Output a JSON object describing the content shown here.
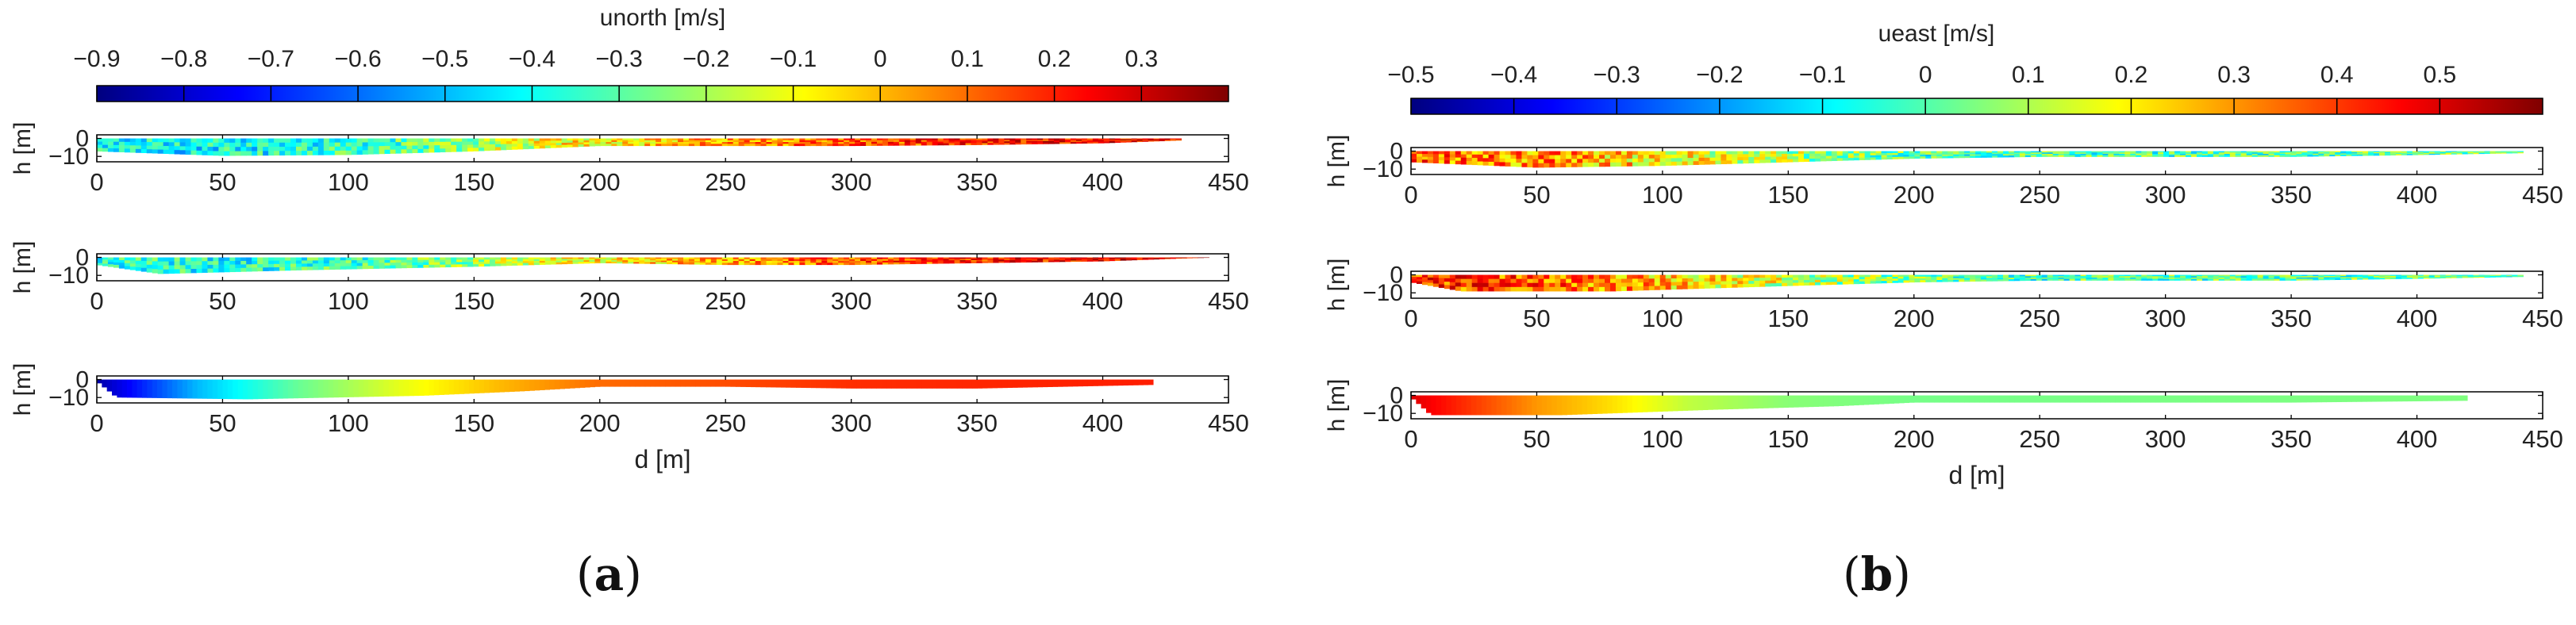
{
  "colors": {
    "jet": [
      "#00007f",
      "#0000ff",
      "#007fff",
      "#00ffff",
      "#7fff7f",
      "#ffff00",
      "#ff7f00",
      "#ff0000",
      "#7f0000"
    ],
    "axis": "#000000",
    "text": "#222222"
  },
  "panels": [
    {
      "id": "a",
      "caption": "a",
      "colorbar": {
        "label": "unorth [m/s]",
        "min": -0.9,
        "max": 0.4,
        "ticks": [
          -0.9,
          -0.8,
          -0.7,
          -0.6,
          -0.5,
          -0.4,
          -0.3,
          -0.2,
          -0.1,
          0,
          0.1,
          0.2,
          0.3
        ],
        "tick_labels": [
          "−0.9",
          "−0.8",
          "−0.7",
          "−0.6",
          "−0.5",
          "−0.4",
          "−0.3",
          "−0.2",
          "−0.1",
          "0",
          "0.1",
          "0.2",
          "0.3"
        ]
      },
      "chart_data": [
        {
          "type": "heatmap",
          "variant": "noisy",
          "xlim": [
            0,
            450
          ],
          "ylim": [
            -13,
            2
          ],
          "xticks": [
            0,
            50,
            100,
            150,
            200,
            250,
            300,
            350,
            400,
            450
          ],
          "yticks": [
            0,
            -10
          ],
          "ytick_labels": [
            "0",
            "−10"
          ],
          "xlabel": "",
          "ylabel": "h [m]",
          "end_x": 430,
          "bed": [
            [
              0,
              -7
            ],
            [
              50,
              -9.5
            ],
            [
              100,
              -9
            ],
            [
              150,
              -7
            ],
            [
              200,
              -4
            ],
            [
              250,
              -4
            ],
            [
              300,
              -4
            ],
            [
              350,
              -3.5
            ],
            [
              400,
              -2.5
            ],
            [
              430,
              -1
            ]
          ],
          "field": [
            [
              0,
              -0.42
            ],
            [
              60,
              -0.4
            ],
            [
              120,
              -0.32
            ],
            [
              180,
              -0.1
            ],
            [
              230,
              0.0
            ],
            [
              280,
              0.1
            ],
            [
              340,
              0.18
            ],
            [
              400,
              0.25
            ],
            [
              430,
              0.25
            ]
          ]
        },
        {
          "type": "heatmap",
          "variant": "noisy",
          "xlim": [
            0,
            450
          ],
          "ylim": [
            -13,
            2
          ],
          "xticks": [
            0,
            50,
            100,
            150,
            200,
            250,
            300,
            350,
            400,
            450
          ],
          "yticks": [
            0,
            -10
          ],
          "ytick_labels": [
            "0",
            "−10"
          ],
          "xlabel": "",
          "ylabel": "h [m]",
          "end_x": 440,
          "bed": [
            [
              0,
              -4
            ],
            [
              25,
              -9
            ],
            [
              80,
              -7
            ],
            [
              150,
              -5
            ],
            [
              200,
              -3
            ],
            [
              250,
              -4
            ],
            [
              300,
              -4
            ],
            [
              350,
              -3
            ],
            [
              400,
              -2
            ],
            [
              440,
              0
            ]
          ],
          "field": [
            [
              0,
              -0.35
            ],
            [
              60,
              -0.38
            ],
            [
              120,
              -0.3
            ],
            [
              180,
              -0.12
            ],
            [
              230,
              0.0
            ],
            [
              280,
              0.08
            ],
            [
              340,
              0.18
            ],
            [
              400,
              0.26
            ],
            [
              440,
              0.28
            ]
          ]
        },
        {
          "type": "heatmap",
          "variant": "smooth",
          "xlim": [
            0,
            450
          ],
          "ylim": [
            -13,
            2
          ],
          "xticks": [
            0,
            50,
            100,
            150,
            200,
            250,
            300,
            350,
            400,
            450
          ],
          "yticks": [
            0,
            -10
          ],
          "ytick_labels": [
            "0",
            "−10"
          ],
          "xlabel": "d [m]",
          "ylabel": "h [m]",
          "end_x": 420,
          "bed": [
            [
              0,
              -1
            ],
            [
              8,
              -10
            ],
            [
              60,
              -11
            ],
            [
              130,
              -9
            ],
            [
              170,
              -6.5
            ],
            [
              200,
              -4
            ],
            [
              250,
              -4
            ],
            [
              300,
              -5
            ],
            [
              350,
              -5
            ],
            [
              420,
              -3
            ]
          ],
          "field": [
            [
              0,
              -0.85
            ],
            [
              15,
              -0.72
            ],
            [
              40,
              -0.5
            ],
            [
              80,
              -0.28
            ],
            [
              120,
              -0.12
            ],
            [
              160,
              0.0
            ],
            [
              200,
              0.1
            ],
            [
              300,
              0.18
            ],
            [
              420,
              0.2
            ]
          ]
        }
      ]
    },
    {
      "id": "b",
      "caption": "b",
      "colorbar": {
        "label": "ueast [m/s]",
        "min": -0.5,
        "max": 0.6,
        "ticks": [
          -0.5,
          -0.4,
          -0.3,
          -0.2,
          -0.1,
          0,
          0.1,
          0.2,
          0.3,
          0.4,
          0.5
        ],
        "tick_labels": [
          "−0.5",
          "−0.4",
          "−0.3",
          "−0.2",
          "−0.1",
          "0",
          "0.1",
          "0.2",
          "0.3",
          "0.4",
          "0.5"
        ]
      },
      "chart_data": [
        {
          "type": "heatmap",
          "variant": "noisy",
          "xlim": [
            0,
            450
          ],
          "ylim": [
            -13,
            2
          ],
          "xticks": [
            0,
            50,
            100,
            150,
            200,
            250,
            300,
            350,
            400,
            450
          ],
          "yticks": [
            0,
            -10
          ],
          "ytick_labels": [
            "0",
            "−10"
          ],
          "xlabel": "",
          "ylabel": "h [m]",
          "end_x": 440,
          "bed": [
            [
              0,
              -6
            ],
            [
              50,
              -9
            ],
            [
              100,
              -8
            ],
            [
              150,
              -6
            ],
            [
              200,
              -4
            ],
            [
              250,
              -3
            ],
            [
              300,
              -3
            ],
            [
              350,
              -3
            ],
            [
              400,
              -2
            ],
            [
              440,
              -1
            ]
          ],
          "field": [
            [
              0,
              0.35
            ],
            [
              60,
              0.3
            ],
            [
              100,
              0.2
            ],
            [
              150,
              0.1
            ],
            [
              200,
              0.0
            ],
            [
              300,
              0.0
            ],
            [
              440,
              0.02
            ]
          ]
        },
        {
          "type": "heatmap",
          "variant": "noisy",
          "xlim": [
            0,
            450
          ],
          "ylim": [
            -13,
            2
          ],
          "xticks": [
            0,
            50,
            100,
            150,
            200,
            250,
            300,
            350,
            400,
            450
          ],
          "yticks": [
            0,
            -10
          ],
          "ytick_labels": [
            "0",
            "−10"
          ],
          "xlabel": "",
          "ylabel": "h [m]",
          "end_x": 440,
          "bed": [
            [
              0,
              -4
            ],
            [
              20,
              -9
            ],
            [
              80,
              -9
            ],
            [
              150,
              -6
            ],
            [
              200,
              -4
            ],
            [
              250,
              -3
            ],
            [
              300,
              -3
            ],
            [
              350,
              -3
            ],
            [
              400,
              -2
            ],
            [
              440,
              -1
            ]
          ],
          "field": [
            [
              0,
              0.4
            ],
            [
              60,
              0.35
            ],
            [
              120,
              0.2
            ],
            [
              170,
              0.08
            ],
            [
              220,
              0.0
            ],
            [
              320,
              0.0
            ],
            [
              440,
              0.02
            ]
          ]
        },
        {
          "type": "heatmap",
          "variant": "smooth",
          "xlim": [
            0,
            450
          ],
          "ylim": [
            -13,
            2
          ],
          "xticks": [
            0,
            50,
            100,
            150,
            200,
            250,
            300,
            350,
            400,
            450
          ],
          "yticks": [
            0,
            -10
          ],
          "ytick_labels": [
            "0",
            "−10"
          ],
          "xlabel": "d [m]",
          "ylabel": "h [m]",
          "end_x": 420,
          "bed": [
            [
              0,
              -1
            ],
            [
              8,
              -11
            ],
            [
              60,
              -11
            ],
            [
              120,
              -8
            ],
            [
              170,
              -6
            ],
            [
              200,
              -4
            ],
            [
              250,
              -4
            ],
            [
              300,
              -4
            ],
            [
              350,
              -4
            ],
            [
              420,
              -3
            ]
          ],
          "field": [
            [
              0,
              0.5
            ],
            [
              20,
              0.42
            ],
            [
              50,
              0.3
            ],
            [
              80,
              0.22
            ],
            [
              110,
              0.12
            ],
            [
              150,
              0.06
            ],
            [
              200,
              0.04
            ],
            [
              420,
              0.05
            ]
          ]
        }
      ]
    }
  ]
}
